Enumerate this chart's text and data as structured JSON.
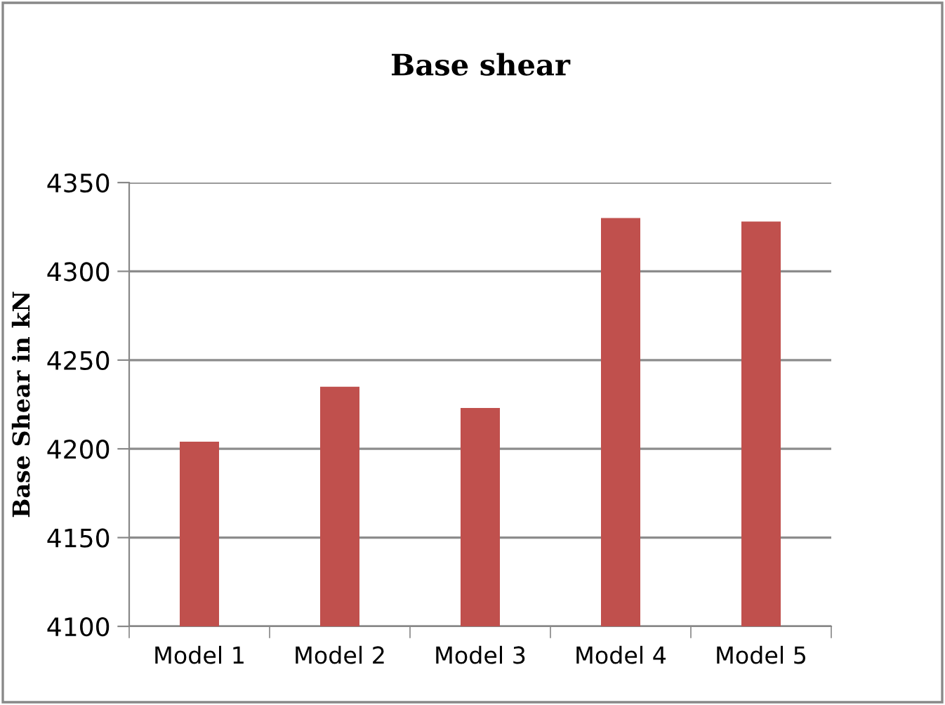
{
  "chart_data": {
    "type": "bar",
    "title": "Base shear",
    "ylabel": "Base Shear in kN",
    "categories": [
      "Model 1",
      "Model 2",
      "Model 3",
      "Model 4",
      "Model 5"
    ],
    "values": [
      4204,
      4235,
      4223,
      4330,
      4328
    ],
    "color": "#c0504d",
    "ylim": [
      4100,
      4350
    ],
    "yticks": [
      4100,
      4150,
      4200,
      4250,
      4300,
      4350
    ],
    "grid": "y"
  }
}
